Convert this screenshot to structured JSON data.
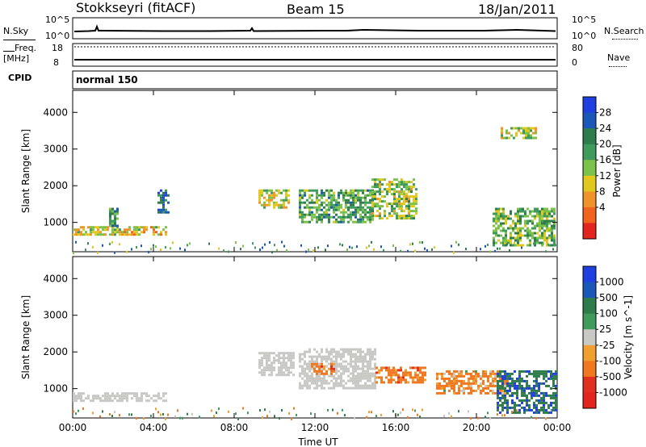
{
  "header": {
    "station": "Stokkseyri (fitACF)",
    "beam": "Beam 15",
    "date": "18/Jan/2011"
  },
  "panels": {
    "nsky_label": "N.Sky",
    "nsearch_label": "N.Search",
    "noise_ticks_left": [
      "10^5",
      "10^0"
    ],
    "noise_ticks_right": [
      "10^5",
      "10^0"
    ],
    "freq_label": "Freq.",
    "freq_unit": "[MHz]",
    "freq_ticks": [
      "18",
      "8"
    ],
    "nave_label": "Nave",
    "nave_ticks": [
      "80",
      "0"
    ],
    "cpid_label": "CPID",
    "cpid_value": "normal 150"
  },
  "colors": {
    "power": [
      "#1f3fe0",
      "#1a57b8",
      "#2e7c4c",
      "#3f9b5c",
      "#7cc24a",
      "#e1c81f",
      "#f0932a",
      "#f06420",
      "#e2251f"
    ],
    "velocity": [
      "#1f3fe0",
      "#1a57b8",
      "#2e7c4c",
      "#3f9b5c",
      "#c8c8c4",
      "#f0a030",
      "#f07820",
      "#e03020",
      "#e2251f"
    ],
    "ground": "#c8c8c4"
  },
  "chart_data": [
    {
      "type": "heatmap",
      "title": "",
      "xlabel": "Time UT",
      "ylabel": "Slant Range [km]",
      "xlim": [
        "00:00",
        "24:00"
      ],
      "ylim": [
        200,
        4600
      ],
      "x_ticks": [
        "00:00",
        "04:00",
        "08:00",
        "12:00",
        "16:00",
        "20:00",
        "00:00"
      ],
      "y_ticks": [
        1000,
        2000,
        3000,
        4000
      ],
      "colorbar": {
        "label": "Power [dB]",
        "ticks": [
          4,
          8,
          12,
          16,
          20,
          24,
          28
        ]
      },
      "regions": [
        {
          "t": [
            0.0,
            4.6
          ],
          "r": [
            700,
            900
          ],
          "value": 22
        },
        {
          "t": [
            1.8,
            2.2
          ],
          "r": [
            900,
            1400
          ],
          "value": 12
        },
        {
          "t": [
            4.2,
            4.7
          ],
          "r": [
            1300,
            1900
          ],
          "value": 8
        },
        {
          "t": [
            9.2,
            10.7
          ],
          "r": [
            1400,
            1900
          ],
          "value": 20
        },
        {
          "t": [
            11.2,
            14.8
          ],
          "r": [
            1000,
            1900
          ],
          "value": 14
        },
        {
          "t": [
            14.8,
            17.0
          ],
          "r": [
            1100,
            2200
          ],
          "value": 18
        },
        {
          "t": [
            20.8,
            23.9
          ],
          "r": [
            350,
            1400
          ],
          "value": 16
        },
        {
          "t": [
            21.2,
            22.9
          ],
          "r": [
            3300,
            3600
          ],
          "value": 20
        }
      ]
    },
    {
      "type": "heatmap",
      "title": "",
      "xlabel": "Time UT",
      "ylabel": "Slant Range [km]",
      "xlim": [
        "00:00",
        "24:00"
      ],
      "ylim": [
        200,
        4600
      ],
      "x_ticks": [
        "00:00",
        "04:00",
        "08:00",
        "12:00",
        "16:00",
        "20:00",
        "00:00"
      ],
      "y_ticks": [
        1000,
        2000,
        3000,
        4000
      ],
      "colorbar": {
        "label": "Velocity [m s^-1]",
        "ticks": [
          1000,
          500,
          100,
          25,
          -25,
          -100,
          -500,
          -1000
        ]
      },
      "regions": [
        {
          "t": [
            0.0,
            4.6
          ],
          "r": [
            700,
            900
          ],
          "value": 0
        },
        {
          "t": [
            9.2,
            11.0
          ],
          "r": [
            1400,
            2000
          ],
          "value": 0
        },
        {
          "t": [
            11.2,
            15.0
          ],
          "r": [
            1000,
            2100
          ],
          "value": 0
        },
        {
          "t": [
            11.8,
            13.0
          ],
          "r": [
            1400,
            1700
          ],
          "value": -300
        },
        {
          "t": [
            15.0,
            17.5
          ],
          "r": [
            1200,
            1600
          ],
          "value": -300
        },
        {
          "t": [
            18.0,
            21.5
          ],
          "r": [
            900,
            1500
          ],
          "value": -200
        },
        {
          "t": [
            21.0,
            23.9
          ],
          "r": [
            350,
            1500
          ],
          "value": 400
        }
      ]
    }
  ]
}
